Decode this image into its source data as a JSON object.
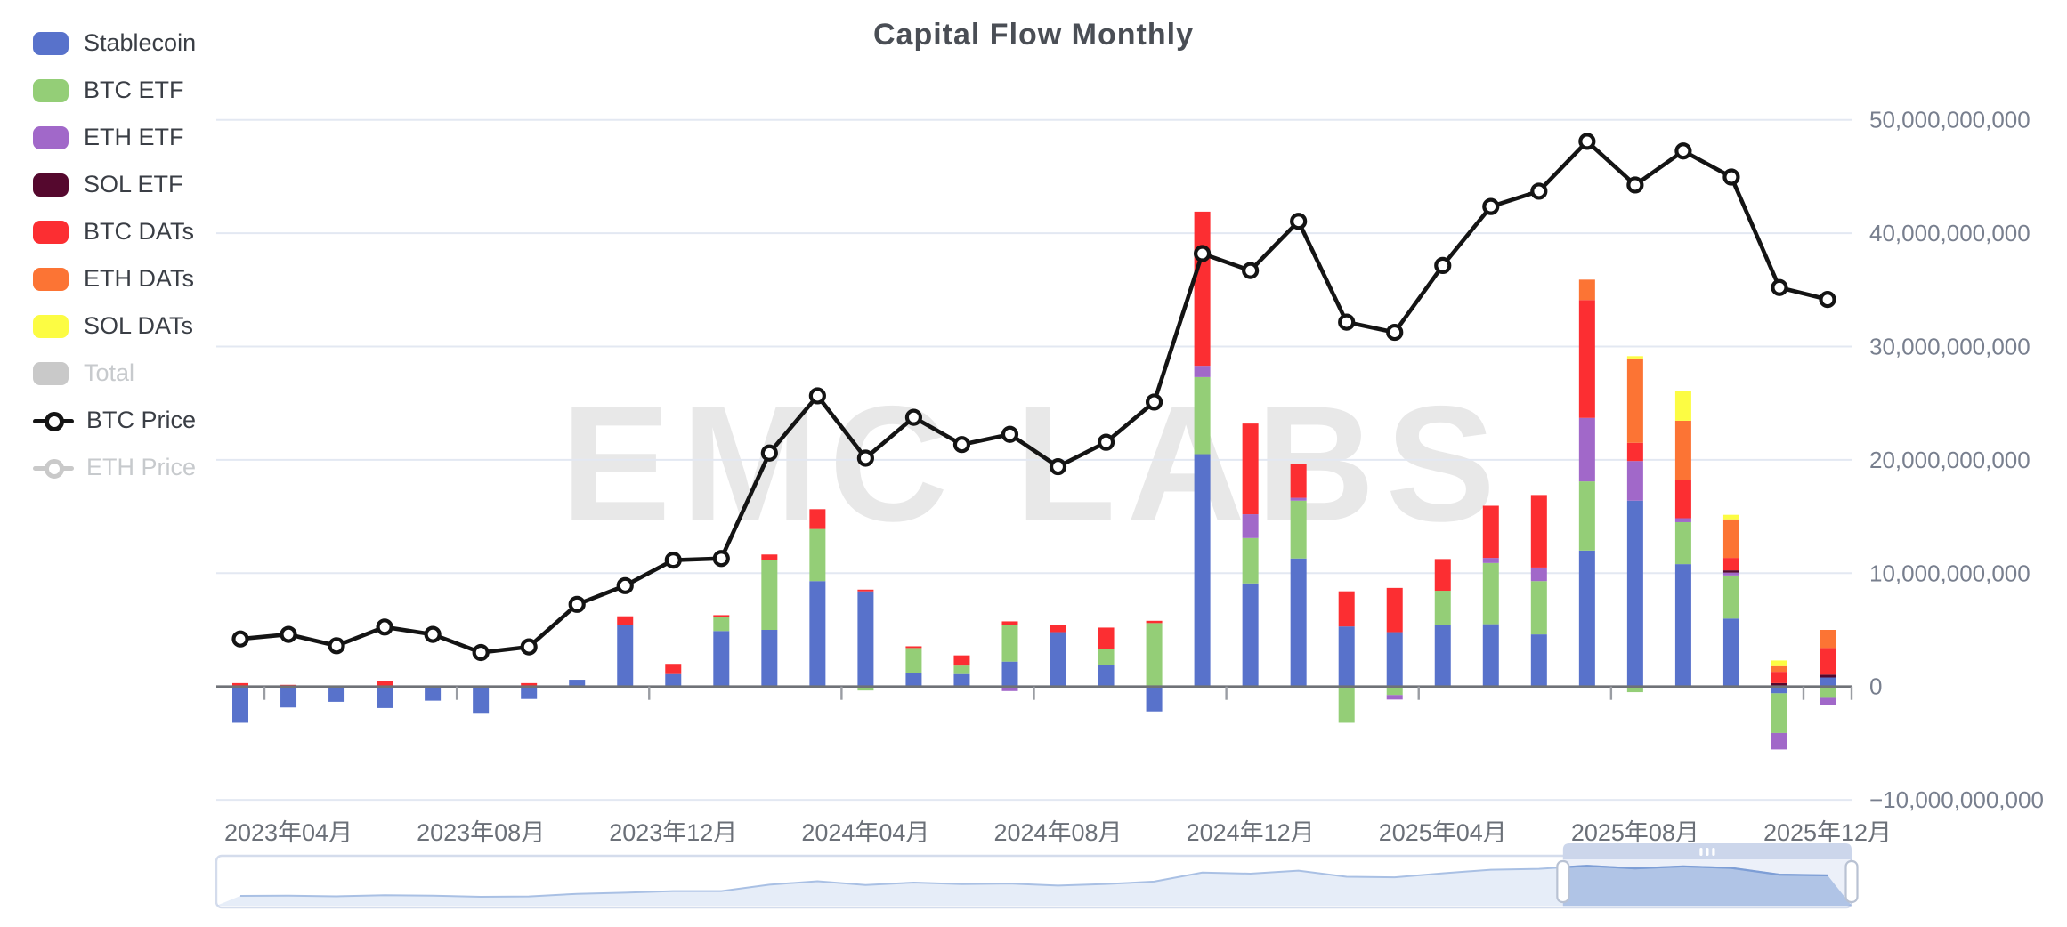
{
  "title": "Capital Flow Monthly",
  "watermark": "EMC LABS",
  "colors": {
    "stablecoin": "#5872CB",
    "btc_etf": "#94CE77",
    "eth_etf": "#A168C9",
    "sol_etf": "#55082E",
    "btc_dats": "#FC2E32",
    "eth_dats": "#FC7434",
    "sol_dats": "#FCFC43",
    "disabled_gray": "#C9C9C9",
    "price_line": "#141414",
    "grid_line": "#E3E8F2",
    "axis_line": "#6F7277",
    "axis_text": "#787F8E",
    "x_text": "#6B7078",
    "watermark_text": "#E8E8E8",
    "nav_border": "#D4DCEC",
    "nav_line": "#A9C0E4",
    "nav_fill": "rgba(167,192,231,0.28)",
    "nav_sel_line": "#7D9ED6",
    "nav_sel_fill": "rgba(129,161,214,0.45)",
    "nav_sel_shade": "rgba(135,163,217,0.16)",
    "nav_bar_fill": "#CCD6EB",
    "nav_handle_stroke": "#B9C2D3"
  },
  "legend": {
    "items": [
      {
        "label": "Stablecoin",
        "type": "bar",
        "color": "#5872CB",
        "enabled": true
      },
      {
        "label": "BTC ETF",
        "type": "bar",
        "color": "#94CE77",
        "enabled": true
      },
      {
        "label": "ETH ETF",
        "type": "bar",
        "color": "#A168C9",
        "enabled": true
      },
      {
        "label": "SOL ETF",
        "type": "bar",
        "color": "#55082E",
        "enabled": true
      },
      {
        "label": "BTC DATs",
        "type": "bar",
        "color": "#FC2E32",
        "enabled": true
      },
      {
        "label": "ETH DATs",
        "type": "bar",
        "color": "#FC7434",
        "enabled": true
      },
      {
        "label": "SOL DATs",
        "type": "bar",
        "color": "#FCFC43",
        "enabled": true
      },
      {
        "label": "Total",
        "type": "bar",
        "color": "#C9C9C9",
        "enabled": false
      },
      {
        "label": "BTC Price",
        "type": "line",
        "color": "#141414",
        "enabled": true
      },
      {
        "label": "ETH Price",
        "type": "line",
        "color": "#C9C9C9",
        "enabled": false
      }
    ]
  },
  "y_axis": {
    "tick_values_billions": [
      50,
      40,
      30,
      20,
      10,
      0,
      -10
    ],
    "tick_labels": [
      "50,000,000,000",
      "40,000,000,000",
      "30,000,000,000",
      "20,000,000,000",
      "10,000,000,000",
      "0",
      "−10,000,000,000"
    ]
  },
  "x_axis": {
    "tick_labels": [
      "2023年04月",
      "2023年08月",
      "2023年12月",
      "2024年04月",
      "2024年08月",
      "2024年12月",
      "2025年04月",
      "2025年08月",
      "2025年12月"
    ]
  },
  "navigator": {
    "window_start_month": "2025-07",
    "window_end_month": "2025-12",
    "grip_icon": "drag-grip"
  },
  "chart_data": {
    "type": "mixed",
    "title": "Capital Flow Monthly",
    "bar_value_unit": "USD billions (net monthly flow)",
    "flow_axis_range_billions": [
      -10,
      50
    ],
    "price_axis_range_usd": [
      0,
      120000
    ],
    "grid": true,
    "legend_position": "top-left",
    "months": [
      "2023-03",
      "2023-04",
      "2023-05",
      "2023-06",
      "2023-07",
      "2023-08",
      "2023-09",
      "2023-10",
      "2023-11",
      "2023-12",
      "2024-01",
      "2024-02",
      "2024-03",
      "2024-04",
      "2024-05",
      "2024-06",
      "2024-07",
      "2024-08",
      "2024-09",
      "2024-10",
      "2024-11",
      "2024-12",
      "2025-01",
      "2025-02",
      "2025-03",
      "2025-04",
      "2025-05",
      "2025-06",
      "2025-07",
      "2025-08",
      "2025-09",
      "2025-10",
      "2025-11",
      "2025-12"
    ],
    "series": [
      {
        "name": "Stablecoin",
        "type": "bar",
        "stack": "flow",
        "color": "#5872CB",
        "values": [
          -3.2,
          -1.85,
          -1.35,
          -1.9,
          -1.25,
          -2.4,
          -1.1,
          0.6,
          5.4,
          1.1,
          4.9,
          5.0,
          9.3,
          8.4,
          1.2,
          1.1,
          2.2,
          4.8,
          1.9,
          -2.2,
          20.5,
          9.1,
          11.3,
          5.3,
          4.8,
          5.4,
          5.5,
          4.6,
          12.0,
          16.4,
          10.8,
          6.0,
          -0.6,
          0.8
        ]
      },
      {
        "name": "BTC ETF",
        "type": "bar",
        "stack": "flow",
        "color": "#94CE77",
        "values": [
          0,
          0,
          0,
          0,
          0,
          0,
          0,
          0,
          0,
          0,
          1.2,
          6.2,
          4.6,
          -0.35,
          2.2,
          0.75,
          3.2,
          0,
          1.4,
          5.6,
          6.8,
          4.0,
          5.1,
          -3.2,
          -0.75,
          3.05,
          5.4,
          4.7,
          6.1,
          -0.5,
          3.7,
          3.8,
          -3.5,
          -1.0
        ]
      },
      {
        "name": "ETH ETF",
        "type": "bar",
        "stack": "flow",
        "color": "#A168C9",
        "values": [
          0,
          0,
          0,
          0,
          0,
          0,
          0,
          0,
          0,
          0,
          0,
          0,
          0,
          0,
          0,
          0,
          -0.4,
          0,
          0,
          0,
          1.0,
          2.1,
          0.25,
          0,
          -0.4,
          0,
          0.45,
          1.2,
          5.6,
          3.5,
          0.35,
          0.25,
          -1.45,
          -0.6
        ]
      },
      {
        "name": "SOL ETF",
        "type": "bar",
        "stack": "flow",
        "color": "#55082E",
        "values": [
          0,
          0,
          0,
          0,
          0,
          0,
          0,
          0,
          0,
          0,
          0,
          0,
          0,
          0,
          0,
          0,
          0,
          0,
          0,
          0,
          0,
          0,
          0,
          0,
          0,
          0,
          0,
          0,
          0,
          0,
          0,
          0.2,
          0.3,
          0.25
        ]
      },
      {
        "name": "BTC DATs",
        "type": "bar",
        "stack": "flow",
        "color": "#FC2E32",
        "values": [
          0.3,
          0.15,
          0,
          0.45,
          0,
          0,
          0.3,
          0,
          0.8,
          0.9,
          0.2,
          0.45,
          1.75,
          0.15,
          0.15,
          0.9,
          0.35,
          0.6,
          1.9,
          0.2,
          13.6,
          8.0,
          3.0,
          3.1,
          3.9,
          2.8,
          4.6,
          6.4,
          10.4,
          1.6,
          3.4,
          1.1,
          1.0,
          2.35
        ]
      },
      {
        "name": "ETH DATs",
        "type": "bar",
        "stack": "flow",
        "color": "#FC7434",
        "values": [
          0,
          0,
          0,
          0,
          0,
          0,
          0,
          0,
          0,
          0,
          0,
          0,
          0,
          0,
          0,
          0,
          0,
          0,
          0,
          0,
          0,
          0,
          0,
          0,
          0,
          0,
          0,
          0,
          1.8,
          7.45,
          5.2,
          3.4,
          0.5,
          1.6
        ]
      },
      {
        "name": "SOL DATs",
        "type": "bar",
        "stack": "flow",
        "color": "#FCFC43",
        "values": [
          0,
          0,
          0,
          0,
          0,
          0,
          0,
          0,
          0,
          0,
          0,
          0,
          0,
          0,
          0,
          0,
          0,
          0,
          0,
          0,
          0,
          0,
          0,
          0,
          0,
          0,
          0,
          0,
          0,
          0.2,
          2.6,
          0.4,
          0.5,
          0
        ]
      },
      {
        "name": "BTC Price",
        "type": "line",
        "unit": "USD",
        "color": "#141414",
        "values": [
          28400,
          29200,
          27200,
          30500,
          29200,
          26000,
          27000,
          34500,
          37800,
          42300,
          42600,
          61200,
          71300,
          60300,
          67500,
          62700,
          64500,
          58800,
          63100,
          70200,
          96400,
          93400,
          102100,
          84300,
          82500,
          94300,
          104700,
          107400,
          116200,
          108500,
          114500,
          109900,
          90400,
          88300
        ]
      }
    ]
  }
}
